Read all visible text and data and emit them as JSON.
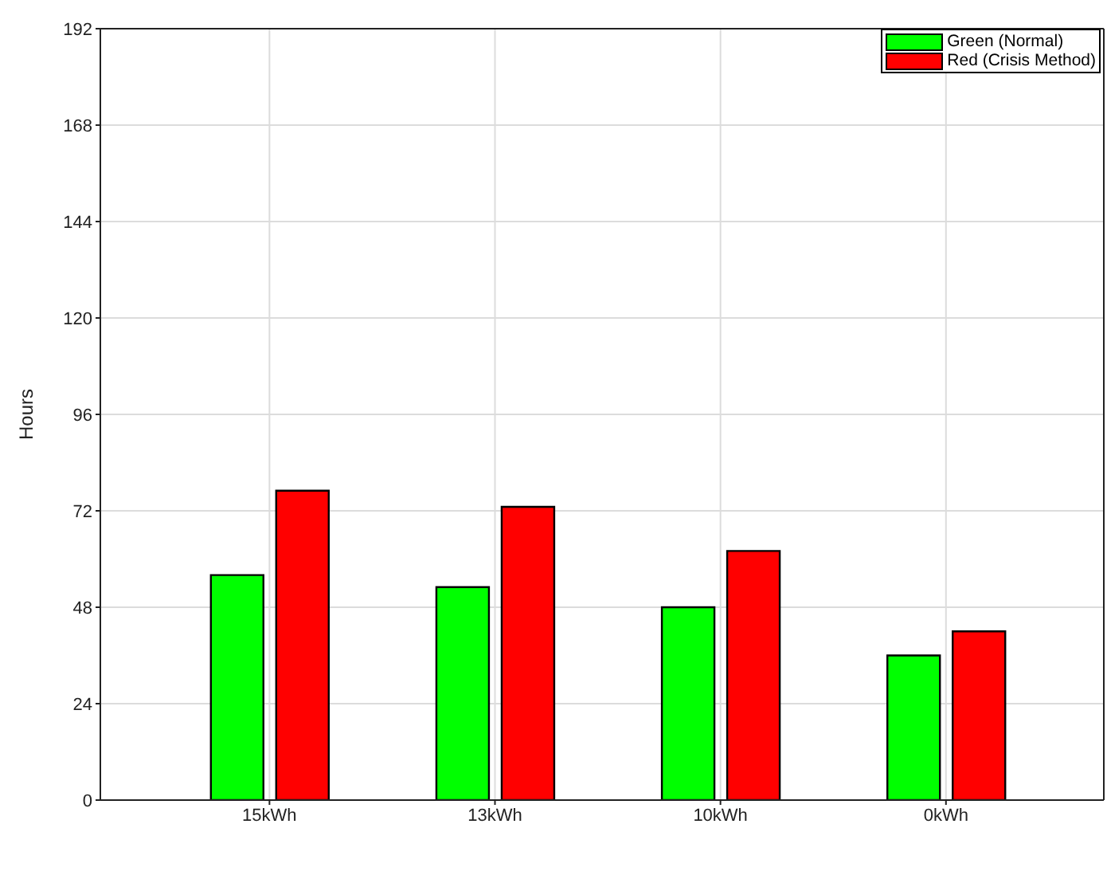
{
  "chart_data": {
    "type": "bar",
    "ylabel": "Hours",
    "categories": [
      "15kWh",
      "13kWh",
      "10kWh",
      "0kWh"
    ],
    "series": [
      {
        "name": "Green (Normal)",
        "color": "#00ff00",
        "values": [
          56,
          53,
          48,
          36
        ]
      },
      {
        "name": "Red (Crisis Method)",
        "color": "#ff0000",
        "values": [
          77,
          73,
          62,
          42
        ]
      }
    ],
    "ylim": [
      0,
      192
    ],
    "yticks": [
      0,
      24,
      48,
      72,
      96,
      120,
      144,
      168,
      192
    ],
    "grid": true,
    "legend": "top right"
  }
}
